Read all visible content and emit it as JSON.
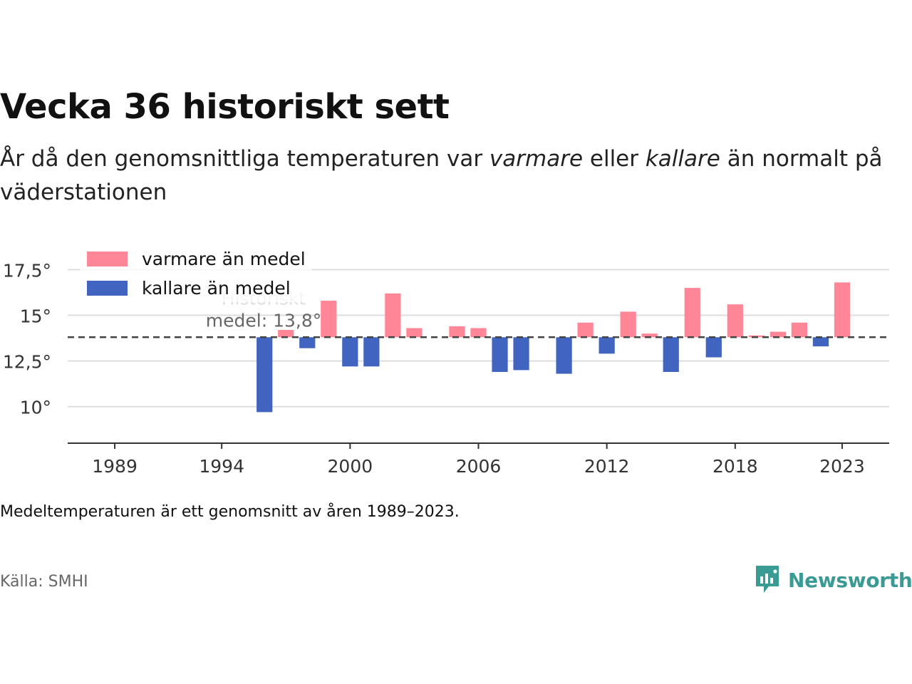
{
  "header": {
    "title": "Vecka 36 historiskt sett",
    "subtitle_pre": "År då den genomsnittliga temperaturen var ",
    "subtitle_warm": "varmare",
    "subtitle_mid": " eller ",
    "subtitle_cold": "kallare",
    "subtitle_post": " än normalt på väderstationen"
  },
  "footer": {
    "note": "Medeltemperaturen är ett genomsnitt av åren 1989–2023.",
    "source": "Källa: SMHI",
    "brand": "Newsworthy"
  },
  "colors": {
    "warm": "#ff8696",
    "cold": "#4064bf",
    "grid": "#dddddd",
    "axis": "#333333",
    "mean_line": "#444444",
    "brand": "#3a9a94"
  },
  "chart_data": {
    "type": "bar",
    "title": "Vecka 36 historiskt sett",
    "baseline": 13.8,
    "baseline_label_line1": "Historiskt",
    "baseline_label_line2": "medel: 13,8°",
    "xlim": [
      1986.8,
      2025.2
    ],
    "ylim": [
      8,
      19
    ],
    "x_ticks": [
      1989,
      1994,
      2000,
      2006,
      2012,
      2018,
      2023
    ],
    "x_tick_labels": [
      "1989",
      "1994",
      "2000",
      "2006",
      "2012",
      "2018",
      "2023"
    ],
    "y_ticks": [
      10,
      12.5,
      15,
      17.5
    ],
    "y_tick_labels": [
      "10°",
      "12,5°",
      "15°",
      "17,5°"
    ],
    "legend_position": "top-left",
    "legend": [
      {
        "label": "varmare än medel",
        "color": "#ff8696"
      },
      {
        "label": "kallare än medel",
        "color": "#4064bf"
      }
    ],
    "series": [
      {
        "name": "varmare än medel",
        "color": "#ff8696",
        "x": [
          1997,
          1999,
          2002,
          2003,
          2005,
          2006,
          2011,
          2013,
          2014,
          2016,
          2018,
          2019,
          2020,
          2021,
          2023
        ],
        "values": [
          14.2,
          15.8,
          16.2,
          14.3,
          14.4,
          14.3,
          14.6,
          15.2,
          14.0,
          16.5,
          15.6,
          13.9,
          14.1,
          14.6,
          16.8
        ]
      },
      {
        "name": "kallare än medel",
        "color": "#4064bf",
        "x": [
          1996,
          1998,
          2000,
          2001,
          2007,
          2008,
          2010,
          2012,
          2015,
          2017,
          2022
        ],
        "values": [
          9.7,
          13.2,
          12.2,
          12.2,
          11.9,
          12.0,
          11.8,
          12.9,
          11.9,
          12.7,
          13.3
        ]
      }
    ]
  }
}
